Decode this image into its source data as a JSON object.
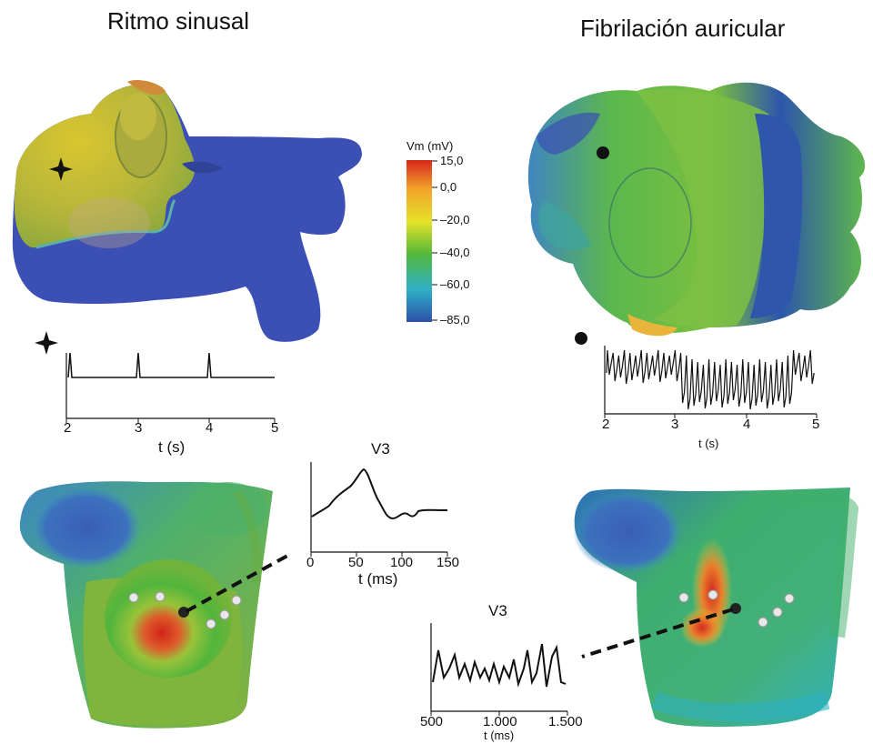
{
  "titles": {
    "left": "Ritmo sinusal",
    "right": "Fibrilación auricular"
  },
  "colorbar": {
    "title": "Vm (mV)",
    "ticks": [
      "15,0",
      "0,0",
      "–20,0",
      "–40,0",
      "–60,0",
      "–85,0"
    ],
    "colors": [
      "#d7261b",
      "#f2a329",
      "#e5e229",
      "#55b83a",
      "#2fb0c9",
      "#2d4fa8"
    ]
  },
  "trace_sinus": {
    "x_ticks": [
      "2",
      "3",
      "4",
      "5"
    ],
    "xlabel": "t (s)"
  },
  "trace_af": {
    "x_ticks": [
      "2",
      "3",
      "4",
      "5"
    ],
    "xlabel": "t (s)"
  },
  "ecg_sinus": {
    "title": "V3",
    "x_ticks": [
      "0",
      "50",
      "100",
      "150"
    ],
    "xlabel": "t (ms)"
  },
  "ecg_af": {
    "title": "V3",
    "x_ticks": [
      "500",
      "1.000",
      "1.500"
    ],
    "xlabel": "t (ms)"
  }
}
